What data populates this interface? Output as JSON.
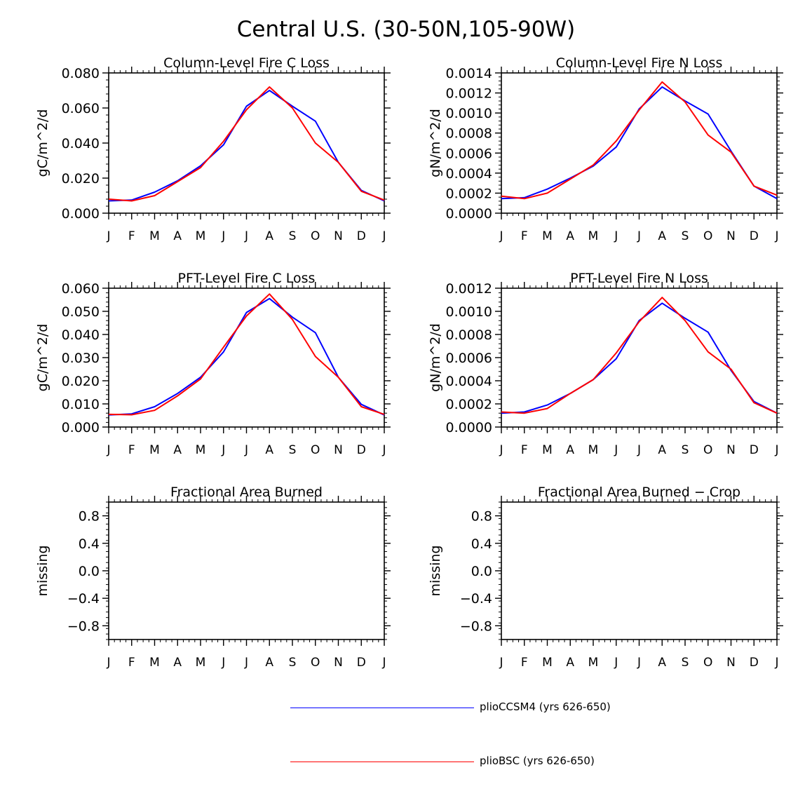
{
  "figure": {
    "title": "Central U.S. (30-50N,105-90W)",
    "months": [
      "J",
      "F",
      "M",
      "A",
      "M",
      "J",
      "J",
      "A",
      "S",
      "O",
      "N",
      "D",
      "J"
    ],
    "colors": {
      "pliocssm4": "#0000ff",
      "pliobsc": "#ff0000"
    }
  },
  "legend": [
    {
      "label": "plioCCSM4 (yrs 626-650)",
      "color": "#0000ff"
    },
    {
      "label": "plioBSC (yrs 626-650)",
      "color": "#ff0000"
    }
  ],
  "chart_data": [
    {
      "type": "line",
      "title": "Column-Level Fire C Loss",
      "ylabel": "gC/m^2/d",
      "ylim": [
        0,
        0.08
      ],
      "yticks": [
        0,
        0.02,
        0.04,
        0.06,
        0.08
      ],
      "ytick_labels": [
        "0.000",
        "0.020",
        "0.040",
        "0.060",
        "0.080"
      ],
      "x": [
        "J",
        "F",
        "M",
        "A",
        "M",
        "J",
        "J",
        "A",
        "S",
        "O",
        "N",
        "D",
        "J"
      ],
      "series": [
        {
          "name": "plioCCSM4 (yrs 626-650)",
          "color": "#0000ff",
          "values": [
            0.007,
            0.0075,
            0.012,
            0.0185,
            0.027,
            0.039,
            0.061,
            0.07,
            0.061,
            0.0525,
            0.029,
            0.013,
            0.007
          ]
        },
        {
          "name": "plioBSC (yrs 626-650)",
          "color": "#ff0000",
          "values": [
            0.008,
            0.007,
            0.01,
            0.018,
            0.026,
            0.041,
            0.059,
            0.072,
            0.06,
            0.04,
            0.029,
            0.0125,
            0.0075
          ]
        }
      ]
    },
    {
      "type": "line",
      "title": "Column-Level Fire N Loss",
      "ylabel": "gN/m^2/d",
      "ylim": [
        0,
        0.0014
      ],
      "yticks": [
        0,
        0.0002,
        0.0004,
        0.0006,
        0.0008,
        0.001,
        0.0012,
        0.0014
      ],
      "ytick_labels": [
        "0.0000",
        "0.0002",
        "0.0004",
        "0.0006",
        "0.0008",
        "0.0010",
        "0.0012",
        "0.0014"
      ],
      "x": [
        "J",
        "F",
        "M",
        "A",
        "M",
        "J",
        "J",
        "A",
        "S",
        "O",
        "N",
        "D",
        "J"
      ],
      "series": [
        {
          "name": "plioCCSM4 (yrs 626-650)",
          "color": "#0000ff",
          "values": [
            0.000145,
            0.000155,
            0.00024,
            0.00035,
            0.00047,
            0.00066,
            0.00104,
            0.00126,
            0.00112,
            0.00099,
            0.00062,
            0.00027,
            0.000145
          ]
        },
        {
          "name": "plioBSC (yrs 626-650)",
          "color": "#ff0000",
          "values": [
            0.00017,
            0.000145,
            0.0002,
            0.00034,
            0.00048,
            0.00072,
            0.00103,
            0.00131,
            0.00111,
            0.00078,
            0.00061,
            0.00027,
            0.00018
          ]
        }
      ]
    },
    {
      "type": "line",
      "title": "PFT-Level Fire C Loss",
      "ylabel": "gC/m^2/d",
      "ylim": [
        0,
        0.06
      ],
      "yticks": [
        0,
        0.01,
        0.02,
        0.03,
        0.04,
        0.05,
        0.06
      ],
      "ytick_labels": [
        "0.000",
        "0.010",
        "0.020",
        "0.030",
        "0.040",
        "0.050",
        "0.060"
      ],
      "x": [
        "J",
        "F",
        "M",
        "A",
        "M",
        "J",
        "J",
        "A",
        "S",
        "O",
        "N",
        "D",
        "J"
      ],
      "series": [
        {
          "name": "plioCCSM4 (yrs 626-650)",
          "color": "#0000ff",
          "values": [
            0.0052,
            0.0057,
            0.0088,
            0.0145,
            0.0215,
            0.0325,
            0.0495,
            0.0555,
            0.0475,
            0.0408,
            0.0215,
            0.0098,
            0.0052
          ]
        },
        {
          "name": "plioBSC (yrs 626-650)",
          "color": "#ff0000",
          "values": [
            0.0055,
            0.0053,
            0.0072,
            0.0135,
            0.0208,
            0.0345,
            0.048,
            0.0575,
            0.0465,
            0.0305,
            0.0215,
            0.0088,
            0.0055
          ]
        }
      ]
    },
    {
      "type": "line",
      "title": "PFT-Level Fire N Loss",
      "ylabel": "gN/m^2/d",
      "ylim": [
        0,
        0.0012
      ],
      "yticks": [
        0,
        0.0002,
        0.0004,
        0.0006,
        0.0008,
        0.001,
        0.0012
      ],
      "ytick_labels": [
        "0.0000",
        "0.0002",
        "0.0004",
        "0.0006",
        "0.0008",
        "0.0010",
        "0.0012"
      ],
      "x": [
        "J",
        "F",
        "M",
        "A",
        "M",
        "J",
        "J",
        "A",
        "S",
        "O",
        "N",
        "D",
        "J"
      ],
      "series": [
        {
          "name": "plioCCSM4 (yrs 626-650)",
          "color": "#0000ff",
          "values": [
            0.00012,
            0.00013,
            0.00019,
            0.00029,
            0.00041,
            0.00059,
            0.00092,
            0.00107,
            0.00094,
            0.00082,
            0.00049,
            0.00022,
            0.00012
          ]
        },
        {
          "name": "plioBSC (yrs 626-650)",
          "color": "#ff0000",
          "values": [
            0.00013,
            0.00012,
            0.00016,
            0.00029,
            0.00041,
            0.00064,
            0.00091,
            0.00112,
            0.00092,
            0.00065,
            0.0005,
            0.00021,
            0.00012
          ]
        }
      ]
    },
    {
      "type": "line",
      "title": "Fractional Area Burned",
      "ylabel": "missing",
      "ylim": [
        -1,
        1
      ],
      "yticks": [
        -0.8,
        -0.4,
        0.0,
        0.4,
        0.8
      ],
      "ytick_labels": [
        "−0.8",
        "−0.4",
        "0.0",
        "0.4",
        "0.8"
      ],
      "x": [
        "J",
        "F",
        "M",
        "A",
        "M",
        "J",
        "J",
        "A",
        "S",
        "O",
        "N",
        "D",
        "J"
      ],
      "series": []
    },
    {
      "type": "line",
      "title": "Fractional Area Burned − Crop",
      "ylabel": "missing",
      "ylim": [
        -1,
        1
      ],
      "yticks": [
        -0.8,
        -0.4,
        0.0,
        0.4,
        0.8
      ],
      "ytick_labels": [
        "−0.8",
        "−0.4",
        "0.0",
        "0.4",
        "0.8"
      ],
      "x": [
        "J",
        "F",
        "M",
        "A",
        "M",
        "J",
        "J",
        "A",
        "S",
        "O",
        "N",
        "D",
        "J"
      ],
      "series": []
    }
  ]
}
